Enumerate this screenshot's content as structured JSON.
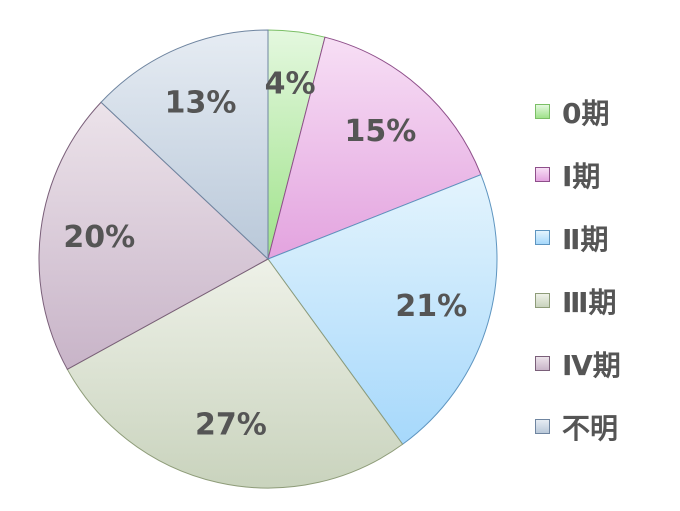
{
  "chart_data": {
    "type": "pie",
    "categories": [
      "0期",
      "Ⅰ期",
      "Ⅱ期",
      "Ⅲ期",
      "Ⅳ期",
      "不明"
    ],
    "values": [
      4,
      15,
      21,
      27,
      20,
      13
    ],
    "data_labels": [
      "4%",
      "15%",
      "21%",
      "27%",
      "20%",
      "13%"
    ],
    "legend_labels": [
      "0期",
      "Ⅰ期",
      "Ⅱ期",
      "Ⅲ期",
      "Ⅳ期",
      "不明"
    ],
    "legend_position": "right",
    "start": "top, clockwise",
    "colors": [
      {
        "fill_top": "#e4f8df",
        "fill_bottom": "#9fe28a",
        "stroke": "#7bbf66"
      },
      {
        "fill_top": "#f7dff5",
        "fill_bottom": "#e3a3df",
        "stroke": "#8e4f8a"
      },
      {
        "fill_top": "#e4f4fd",
        "fill_bottom": "#a6d8fb",
        "stroke": "#5e95c0"
      },
      {
        "fill_top": "#eef1e8",
        "fill_bottom": "#c9d3bd",
        "stroke": "#8e9c79"
      },
      {
        "fill_top": "#ece3ea",
        "fill_bottom": "#c8b4c8",
        "stroke": "#7a5f79"
      },
      {
        "fill_top": "#e6ecf3",
        "fill_bottom": "#b9c8d9",
        "stroke": "#6f85a0"
      }
    ]
  }
}
